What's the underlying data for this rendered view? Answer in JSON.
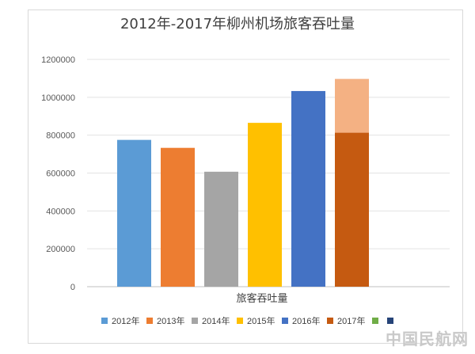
{
  "chart_data": {
    "type": "bar",
    "title": "2012年-2017年柳州机场旅客吞吐量",
    "xlabel": "旅客吞吐量",
    "ylabel": "",
    "ylim": [
      0,
      1200000
    ],
    "yticks": [
      0,
      200000,
      400000,
      600000,
      800000,
      1000000,
      1200000
    ],
    "ytick_labels": [
      "0",
      "200000",
      "400000",
      "600000",
      "800000",
      "1000000",
      "1200000"
    ],
    "category": "旅客吞吐量",
    "grid": true,
    "legend_position": "bottom",
    "series": [
      {
        "name": "2012年",
        "value": 775000,
        "color": "#5b9bd5"
      },
      {
        "name": "2013年",
        "value": 733000,
        "color": "#ed7d31"
      },
      {
        "name": "2014年",
        "value": 607000,
        "color": "#a5a5a5"
      },
      {
        "name": "2015年",
        "value": 865000,
        "color": "#ffc000"
      },
      {
        "name": "2016年",
        "value": 1033000,
        "color": "#4472c4"
      },
      {
        "name": "2017年",
        "value": 813000,
        "total": 1097000,
        "color": "#c55a11",
        "top_color": "#f4b183"
      }
    ],
    "legend_extra": [
      {
        "color": "#70ad47"
      },
      {
        "color": "#264478"
      }
    ]
  },
  "watermark": "中国民航网"
}
